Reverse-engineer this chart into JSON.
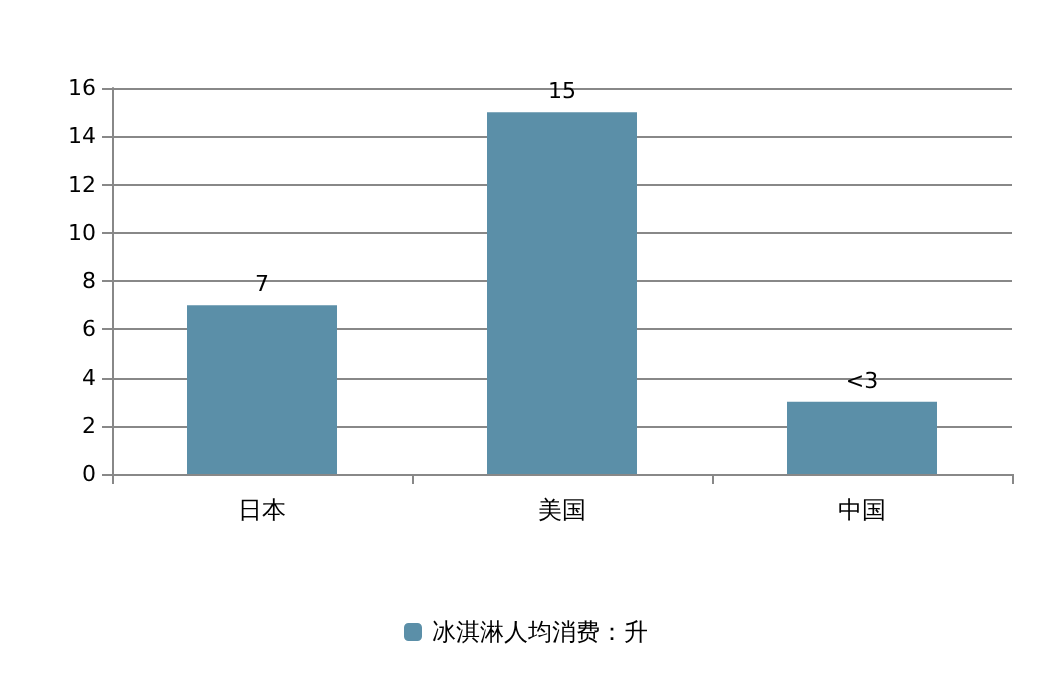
{
  "chart_data": {
    "type": "bar",
    "categories": [
      "日本",
      "美国",
      "中国"
    ],
    "series": [
      {
        "name": "冰淇淋人均消费：升",
        "color": "#5b8fa8",
        "values": [
          7,
          15,
          3
        ],
        "value_labels": [
          "7",
          "15",
          "<3"
        ]
      }
    ],
    "ylim": [
      0,
      16
    ],
    "yticks": [
      0,
      2,
      4,
      6,
      8,
      10,
      12,
      14,
      16
    ],
    "grid": "y",
    "legend": "bottom"
  }
}
